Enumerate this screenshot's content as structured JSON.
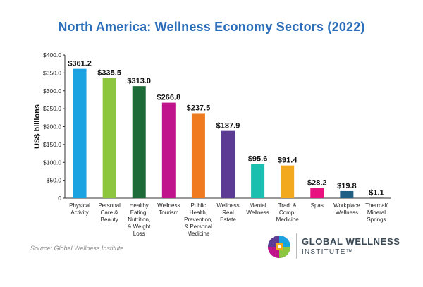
{
  "chart_data": {
    "type": "bar",
    "title": "North America: Wellness Economy Sectors (2022)",
    "ylabel": "US$ billions",
    "xlabel": "",
    "ylim": [
      0,
      400
    ],
    "yticks": [
      0,
      50,
      100,
      150,
      200,
      250,
      300,
      350,
      400
    ],
    "ytick_labels": [
      "0",
      "$50.0",
      "$100.0",
      "$150.0",
      "$200.0",
      "$250.0",
      "$300.0",
      "$350.0",
      "$400.0"
    ],
    "grid": false,
    "categories": [
      [
        "Physical",
        "Activity"
      ],
      [
        "Personal",
        "Care &",
        "Beauty"
      ],
      [
        "Healthy",
        "Eating,",
        "Nutrition,",
        "& Weight",
        "Loss"
      ],
      [
        "Wellness",
        "Tourism"
      ],
      [
        "Public",
        "Health,",
        "Prevention,",
        "& Personal",
        "Medicine"
      ],
      [
        "Wellness",
        "Real",
        "Estate"
      ],
      [
        "Mental",
        "Wellness"
      ],
      [
        "Trad. &",
        "Comp.",
        "Medicine"
      ],
      [
        "Spas"
      ],
      [
        "Workplace",
        "Wellness"
      ],
      [
        "Thermal/",
        "Mineral",
        "Springs"
      ]
    ],
    "values": [
      361.2,
      335.5,
      313.0,
      266.8,
      237.5,
      187.9,
      95.6,
      91.4,
      28.2,
      19.8,
      1.1
    ],
    "value_labels": [
      "$361.2",
      "$335.5",
      "$313.0",
      "$266.8",
      "$237.5",
      "$187.9",
      "$95.6",
      "$91.4",
      "$28.2",
      "$19.8",
      "$1.1"
    ],
    "colors": [
      "#1aa3e0",
      "#8cc63f",
      "#1e6b3a",
      "#c0148c",
      "#f07a1f",
      "#5b3b93",
      "#1bbfb0",
      "#f2a91e",
      "#e8117f",
      "#1f5f86",
      "#2a2a2a"
    ]
  },
  "source_text": "Source: Global Wellness Institute",
  "org": {
    "name_line1": "GLOBAL WELLNESS",
    "name_line2": "INSTITUTE™",
    "logo_colors": [
      "#1aa3e0",
      "#c0148c",
      "#8cc63f",
      "#f07a1f",
      "#5b3b93",
      "#f2a91e"
    ]
  }
}
